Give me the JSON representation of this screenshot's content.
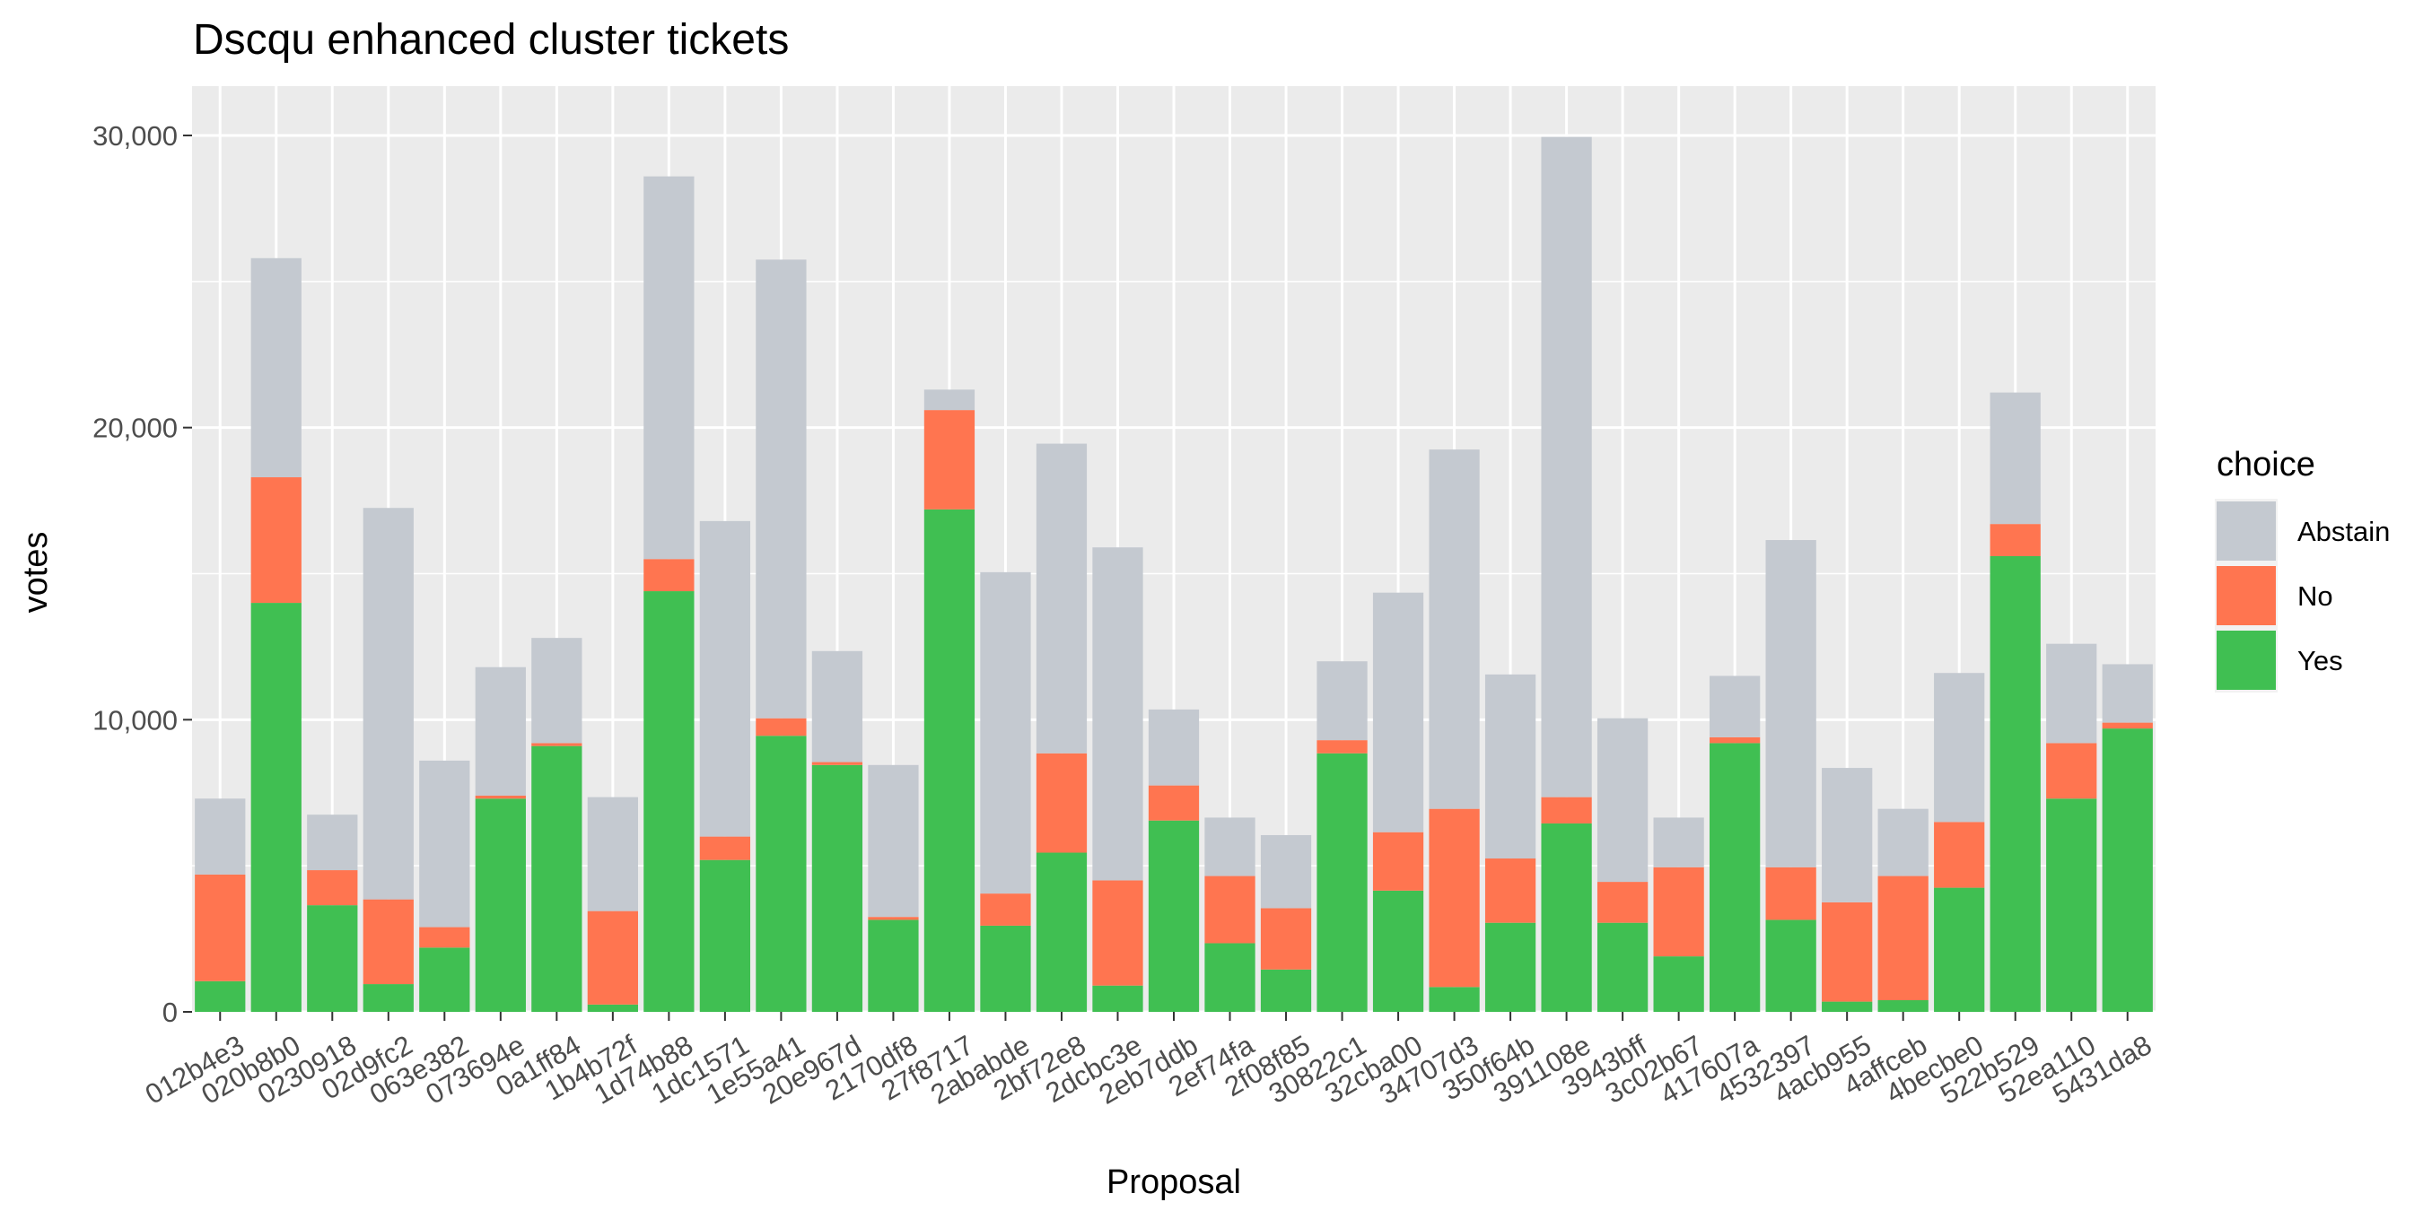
{
  "chart_data": {
    "type": "bar",
    "stacked": true,
    "title": "Dscqu enhanced cluster tickets",
    "xlabel": "Proposal",
    "ylabel": "votes",
    "ylim": [
      0,
      31000
    ],
    "y_ticks": [
      0,
      10000,
      20000,
      30000
    ],
    "y_tick_labels": [
      "0",
      "10,000",
      "20,000",
      "30,000"
    ],
    "grid": true,
    "legend": {
      "title": "choice",
      "position": "right"
    },
    "categories": [
      "012b4e3",
      "020b8b0",
      "0230918",
      "02d9fc2",
      "063e382",
      "073694e",
      "0a1ff84",
      "1b4b72f",
      "1d74b88",
      "1dc1571",
      "1e55a41",
      "20e967d",
      "2170df8",
      "27f8717",
      "2ababde",
      "2bf72e8",
      "2dcbc3e",
      "2eb7ddb",
      "2ef74fa",
      "2f08f85",
      "30822c1",
      "32cba00",
      "34707d3",
      "350f64b",
      "391108e",
      "3943bff",
      "3c02b67",
      "417607a",
      "4532397",
      "4acb955",
      "4affceb",
      "4becbe0",
      "522b529",
      "52ea110",
      "5431da8"
    ],
    "series": [
      {
        "name": "Abstain",
        "color": "#C4C9D0",
        "values": [
          2600,
          7500,
          1900,
          13400,
          5700,
          4400,
          3600,
          3900,
          13100,
          10800,
          15700,
          3800,
          5200,
          700,
          11000,
          10600,
          11400,
          2600,
          2000,
          2500,
          2700,
          8200,
          12300,
          6300,
          22600,
          5600,
          1700,
          2100,
          11200,
          4600,
          2300,
          5100,
          4500,
          3400,
          2000
        ]
      },
      {
        "name": "No",
        "color": "#FF7550",
        "values": [
          3650,
          4300,
          1200,
          2900,
          700,
          100,
          100,
          3200,
          1100,
          800,
          600,
          100,
          100,
          3400,
          1100,
          3400,
          3600,
          1200,
          2300,
          2100,
          450,
          2000,
          6100,
          2200,
          900,
          1400,
          3050,
          200,
          1800,
          3400,
          4250,
          2250,
          1100,
          1900,
          200
        ]
      },
      {
        "name": "Yes",
        "color": "#40BF52",
        "values": [
          1050,
          14000,
          3650,
          950,
          2200,
          7300,
          9100,
          250,
          14400,
          5200,
          9450,
          8450,
          3150,
          17200,
          2950,
          5450,
          900,
          6550,
          2350,
          1450,
          8850,
          4150,
          850,
          3050,
          6450,
          3050,
          1900,
          9200,
          3150,
          350,
          400,
          4250,
          15600,
          7300,
          9700
        ]
      }
    ]
  }
}
